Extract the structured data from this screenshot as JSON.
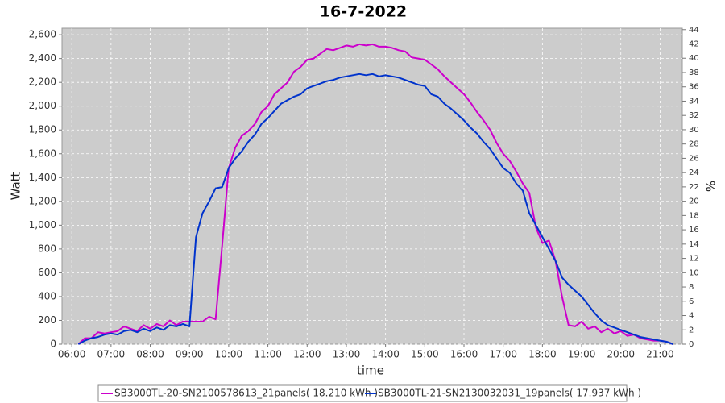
{
  "chart_data": {
    "type": "line",
    "title": "16-7-2022",
    "x_label": "time",
    "y_label": "Watt",
    "y2_label": "%",
    "x": [
      370,
      380,
      390,
      400,
      410,
      420,
      430,
      440,
      450,
      460,
      470,
      480,
      490,
      500,
      510,
      520,
      530,
      540,
      550,
      560,
      570,
      580,
      590,
      600,
      610,
      620,
      630,
      640,
      650,
      660,
      670,
      680,
      690,
      700,
      710,
      720,
      730,
      740,
      750,
      760,
      770,
      780,
      790,
      800,
      810,
      820,
      830,
      840,
      850,
      860,
      870,
      880,
      890,
      900,
      910,
      920,
      930,
      940,
      950,
      960,
      970,
      980,
      990,
      1000,
      1010,
      1020,
      1030,
      1040,
      1050,
      1060,
      1070,
      1080,
      1090,
      1100,
      1110,
      1120,
      1130,
      1140,
      1150,
      1160,
      1170,
      1180,
      1190,
      1200,
      1210,
      1220,
      1230,
      1240,
      1250,
      1260,
      1270,
      1280
    ],
    "series": [
      {
        "name": "SB3000TL-20-SN2100578613_21panels( 18.210 kWh )",
        "color": "#cc00cc",
        "values": [
          0,
          50,
          50,
          100,
          90,
          100,
          110,
          150,
          130,
          110,
          160,
          130,
          170,
          150,
          200,
          160,
          190,
          190,
          190,
          190,
          230,
          210,
          830,
          1480,
          1650,
          1750,
          1790,
          1850,
          1950,
          2000,
          2100,
          2150,
          2200,
          2290,
          2330,
          2390,
          2400,
          2440,
          2480,
          2470,
          2490,
          2510,
          2500,
          2520,
          2510,
          2520,
          2500,
          2500,
          2490,
          2470,
          2460,
          2410,
          2400,
          2390,
          2350,
          2310,
          2250,
          2200,
          2150,
          2100,
          2030,
          1950,
          1880,
          1800,
          1690,
          1600,
          1540,
          1450,
          1350,
          1270,
          980,
          850,
          870,
          700,
          400,
          160,
          150,
          190,
          130,
          150,
          100,
          130,
          90,
          110,
          70,
          80,
          50,
          40,
          30,
          30,
          20,
          0
        ]
      },
      {
        "name": "SB3000TL-21-SN2130032031_19panels( 17.937 kWh )",
        "color": "#0033cc",
        "values": [
          0,
          30,
          50,
          60,
          80,
          90,
          80,
          110,
          120,
          100,
          130,
          110,
          140,
          120,
          160,
          150,
          170,
          150,
          900,
          1100,
          1200,
          1310,
          1320,
          1480,
          1560,
          1620,
          1700,
          1760,
          1850,
          1900,
          1960,
          2020,
          2050,
          2080,
          2100,
          2150,
          2170,
          2190,
          2210,
          2220,
          2240,
          2250,
          2260,
          2270,
          2260,
          2270,
          2250,
          2260,
          2250,
          2240,
          2220,
          2200,
          2180,
          2170,
          2100,
          2080,
          2020,
          1980,
          1930,
          1880,
          1820,
          1770,
          1700,
          1640,
          1560,
          1480,
          1440,
          1350,
          1290,
          1100,
          1000,
          900,
          800,
          700,
          560,
          500,
          450,
          400,
          330,
          260,
          200,
          160,
          140,
          120,
          100,
          80,
          60,
          50,
          40,
          30,
          20,
          0
        ]
      }
    ],
    "xlim": [
      345,
      1294
    ],
    "xticks": [
      {
        "value": 360,
        "label": "06:00"
      },
      {
        "value": 420,
        "label": "07:00"
      },
      {
        "value": 480,
        "label": "08:00"
      },
      {
        "value": 540,
        "label": "09:00"
      },
      {
        "value": 600,
        "label": "10:00"
      },
      {
        "value": 660,
        "label": "11:00"
      },
      {
        "value": 720,
        "label": "12:00"
      },
      {
        "value": 780,
        "label": "13:00"
      },
      {
        "value": 840,
        "label": "14:00"
      },
      {
        "value": 900,
        "label": "15:00"
      },
      {
        "value": 960,
        "label": "16:00"
      },
      {
        "value": 1020,
        "label": "17:00"
      },
      {
        "value": 1080,
        "label": "18:00"
      },
      {
        "value": 1140,
        "label": "19:00"
      },
      {
        "value": 1200,
        "label": "20:00"
      },
      {
        "value": 1260,
        "label": "21:00"
      }
    ],
    "ylim": [
      0,
      2655
    ],
    "yticks": [
      0,
      200,
      400,
      600,
      800,
      {
        "value": 1000,
        "label": "1,000"
      },
      {
        "value": 1200,
        "label": "1,200"
      },
      {
        "value": 1400,
        "label": "1,400"
      },
      {
        "value": 1600,
        "label": "1,600"
      },
      {
        "value": 1800,
        "label": "1,800"
      },
      {
        "value": 2000,
        "label": "2,000"
      },
      {
        "value": 2200,
        "label": "2,200"
      },
      {
        "value": 2400,
        "label": "2,400"
      },
      {
        "value": 2600,
        "label": "2,600"
      }
    ],
    "y2lim": [
      0,
      44.2
    ],
    "y2ticks": [
      0,
      2,
      4,
      6,
      8,
      10,
      12,
      14,
      16,
      18,
      20,
      22,
      24,
      26,
      28,
      30,
      32,
      34,
      36,
      38,
      40,
      42,
      44
    ],
    "grid": true
  }
}
